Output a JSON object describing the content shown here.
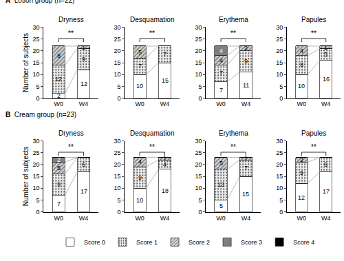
{
  "chart_data": [
    {
      "type": "bar",
      "stacked": true,
      "data_labels": true,
      "legend": "bottom",
      "panel": "A",
      "subtitle": "Lotion group (n=22)",
      "title": "Dryness",
      "ylabel": "Number of subjects",
      "categories": [
        "W0",
        "W4"
      ],
      "ylim": [
        0,
        30
      ],
      "yticks": [
        0,
        5,
        10,
        15,
        20,
        25,
        30
      ],
      "annotations": [
        "**"
      ],
      "series": [
        {
          "name": "Score 0",
          "color": "#ffffff",
          "values": [
            2,
            12
          ]
        },
        {
          "name": "Score 1",
          "color": "#f2f2f2",
          "values": [
            12,
            9
          ]
        },
        {
          "name": "Score 2",
          "color": "#d0d0d0",
          "values": [
            8,
            1
          ]
        },
        {
          "name": "Score 3",
          "color": "#7f7f7f",
          "values": [
            0,
            0
          ]
        },
        {
          "name": "Score 4",
          "color": "#000000",
          "values": [
            0,
            0
          ]
        }
      ]
    },
    {
      "type": "bar",
      "stacked": true,
      "data_labels": true,
      "legend": "bottom",
      "title": "Desquamation",
      "categories": [
        "W0",
        "W4"
      ],
      "ylim": [
        0,
        30
      ],
      "yticks": [
        0,
        5,
        10,
        15,
        20,
        25,
        30
      ],
      "annotations": [
        "**"
      ],
      "series": [
        {
          "name": "Score 0",
          "color": "#ffffff",
          "values": [
            10,
            15
          ]
        },
        {
          "name": "Score 1",
          "color": "#f2f2f2",
          "values": [
            7,
            7
          ]
        },
        {
          "name": "Score 2",
          "color": "#d0d0d0",
          "values": [
            5,
            0
          ]
        },
        {
          "name": "Score 3",
          "color": "#7f7f7f",
          "values": [
            0,
            0
          ]
        },
        {
          "name": "Score 4",
          "color": "#000000",
          "values": [
            0,
            0
          ]
        }
      ]
    },
    {
      "type": "bar",
      "stacked": true,
      "data_labels": true,
      "legend": "bottom",
      "title": "Erythema",
      "categories": [
        "W0",
        "W4"
      ],
      "ylim": [
        0,
        30
      ],
      "yticks": [
        0,
        5,
        10,
        15,
        20,
        25,
        30
      ],
      "annotations": [
        "**"
      ],
      "series": [
        {
          "name": "Score 0",
          "color": "#ffffff",
          "values": [
            7,
            11
          ]
        },
        {
          "name": "Score 1",
          "color": "#f2f2f2",
          "values": [
            7,
            9
          ]
        },
        {
          "name": "Score 2",
          "color": "#d0d0d0",
          "values": [
            4,
            2
          ]
        },
        {
          "name": "Score 3",
          "color": "#7f7f7f",
          "values": [
            4,
            0
          ]
        },
        {
          "name": "Score 4",
          "color": "#000000",
          "values": [
            0,
            0
          ]
        }
      ]
    },
    {
      "type": "bar",
      "stacked": true,
      "data_labels": true,
      "legend": "bottom",
      "title": "Papules",
      "categories": [
        "W0",
        "W4"
      ],
      "ylim": [
        0,
        30
      ],
      "yticks": [
        0,
        5,
        10,
        15,
        20,
        25,
        30
      ],
      "annotations": [
        "**"
      ],
      "series": [
        {
          "name": "Score 0",
          "color": "#ffffff",
          "values": [
            10,
            16
          ]
        },
        {
          "name": "Score 1",
          "color": "#f2f2f2",
          "values": [
            8,
            5
          ]
        },
        {
          "name": "Score 2",
          "color": "#d0d0d0",
          "values": [
            4,
            1
          ]
        },
        {
          "name": "Score 3",
          "color": "#7f7f7f",
          "values": [
            0,
            0
          ]
        },
        {
          "name": "Score 4",
          "color": "#000000",
          "values": [
            0,
            0
          ]
        }
      ]
    },
    {
      "type": "bar",
      "stacked": true,
      "data_labels": true,
      "legend": "bottom",
      "panel": "B",
      "subtitle": "Cream group (n=23)",
      "title": "Dryness",
      "ylabel": "Number of subjects",
      "categories": [
        "W0",
        "W4"
      ],
      "ylim": [
        0,
        30
      ],
      "yticks": [
        0,
        5,
        10,
        15,
        20,
        25,
        30
      ],
      "annotations": [
        "**"
      ],
      "series": [
        {
          "name": "Score 0",
          "color": "#ffffff",
          "values": [
            7,
            17
          ]
        },
        {
          "name": "Score 1",
          "color": "#f2f2f2",
          "values": [
            9,
            6
          ]
        },
        {
          "name": "Score 2",
          "color": "#d0d0d0",
          "values": [
            5,
            0
          ]
        },
        {
          "name": "Score 3",
          "color": "#7f7f7f",
          "values": [
            2,
            0
          ]
        },
        {
          "name": "Score 4",
          "color": "#000000",
          "values": [
            0,
            0
          ]
        }
      ]
    },
    {
      "type": "bar",
      "stacked": true,
      "data_labels": true,
      "legend": "bottom",
      "title": "Desquamation",
      "categories": [
        "W0",
        "W4"
      ],
      "ylim": [
        0,
        30
      ],
      "yticks": [
        0,
        5,
        10,
        15,
        20,
        25,
        30
      ],
      "annotations": [
        "**"
      ],
      "series": [
        {
          "name": "Score 0",
          "color": "#ffffff",
          "values": [
            10,
            18
          ]
        },
        {
          "name": "Score 1",
          "color": "#f2f2f2",
          "values": [
            9,
            4
          ]
        },
        {
          "name": "Score 2",
          "color": "#d0d0d0",
          "values": [
            4,
            1
          ]
        },
        {
          "name": "Score 3",
          "color": "#7f7f7f",
          "values": [
            0,
            0
          ]
        },
        {
          "name": "Score 4",
          "color": "#000000",
          "values": [
            0,
            0
          ]
        }
      ]
    },
    {
      "type": "bar",
      "stacked": true,
      "data_labels": true,
      "legend": "bottom",
      "title": "Erythema",
      "categories": [
        "W0",
        "W4"
      ],
      "ylim": [
        0,
        30
      ],
      "yticks": [
        0,
        5,
        10,
        15,
        20,
        25,
        30
      ],
      "annotations": [
        "**"
      ],
      "series": [
        {
          "name": "Score 0",
          "color": "#ffffff",
          "values": [
            5,
            15
          ]
        },
        {
          "name": "Score 1",
          "color": "#f2f2f2",
          "values": [
            13,
            7
          ]
        },
        {
          "name": "Score 2",
          "color": "#d0d0d0",
          "values": [
            5,
            1
          ]
        },
        {
          "name": "Score 3",
          "color": "#7f7f7f",
          "values": [
            0,
            0
          ]
        },
        {
          "name": "Score 4",
          "color": "#000000",
          "values": [
            0,
            0
          ]
        }
      ]
    },
    {
      "type": "bar",
      "stacked": true,
      "data_labels": true,
      "legend": "bottom",
      "title": "Papules",
      "categories": [
        "W0",
        "W4"
      ],
      "ylim": [
        0,
        30
      ],
      "yticks": [
        0,
        5,
        10,
        15,
        20,
        25,
        30
      ],
      "annotations": [
        "**"
      ],
      "series": [
        {
          "name": "Score 0",
          "color": "#ffffff",
          "values": [
            12,
            17
          ]
        },
        {
          "name": "Score 1",
          "color": "#f2f2f2",
          "values": [
            9,
            6
          ]
        },
        {
          "name": "Score 2",
          "color": "#d0d0d0",
          "values": [
            2,
            0
          ]
        },
        {
          "name": "Score 3",
          "color": "#7f7f7f",
          "values": [
            0,
            0
          ]
        },
        {
          "name": "Score 4",
          "color": "#000000",
          "values": [
            0,
            0
          ]
        }
      ]
    }
  ]
}
